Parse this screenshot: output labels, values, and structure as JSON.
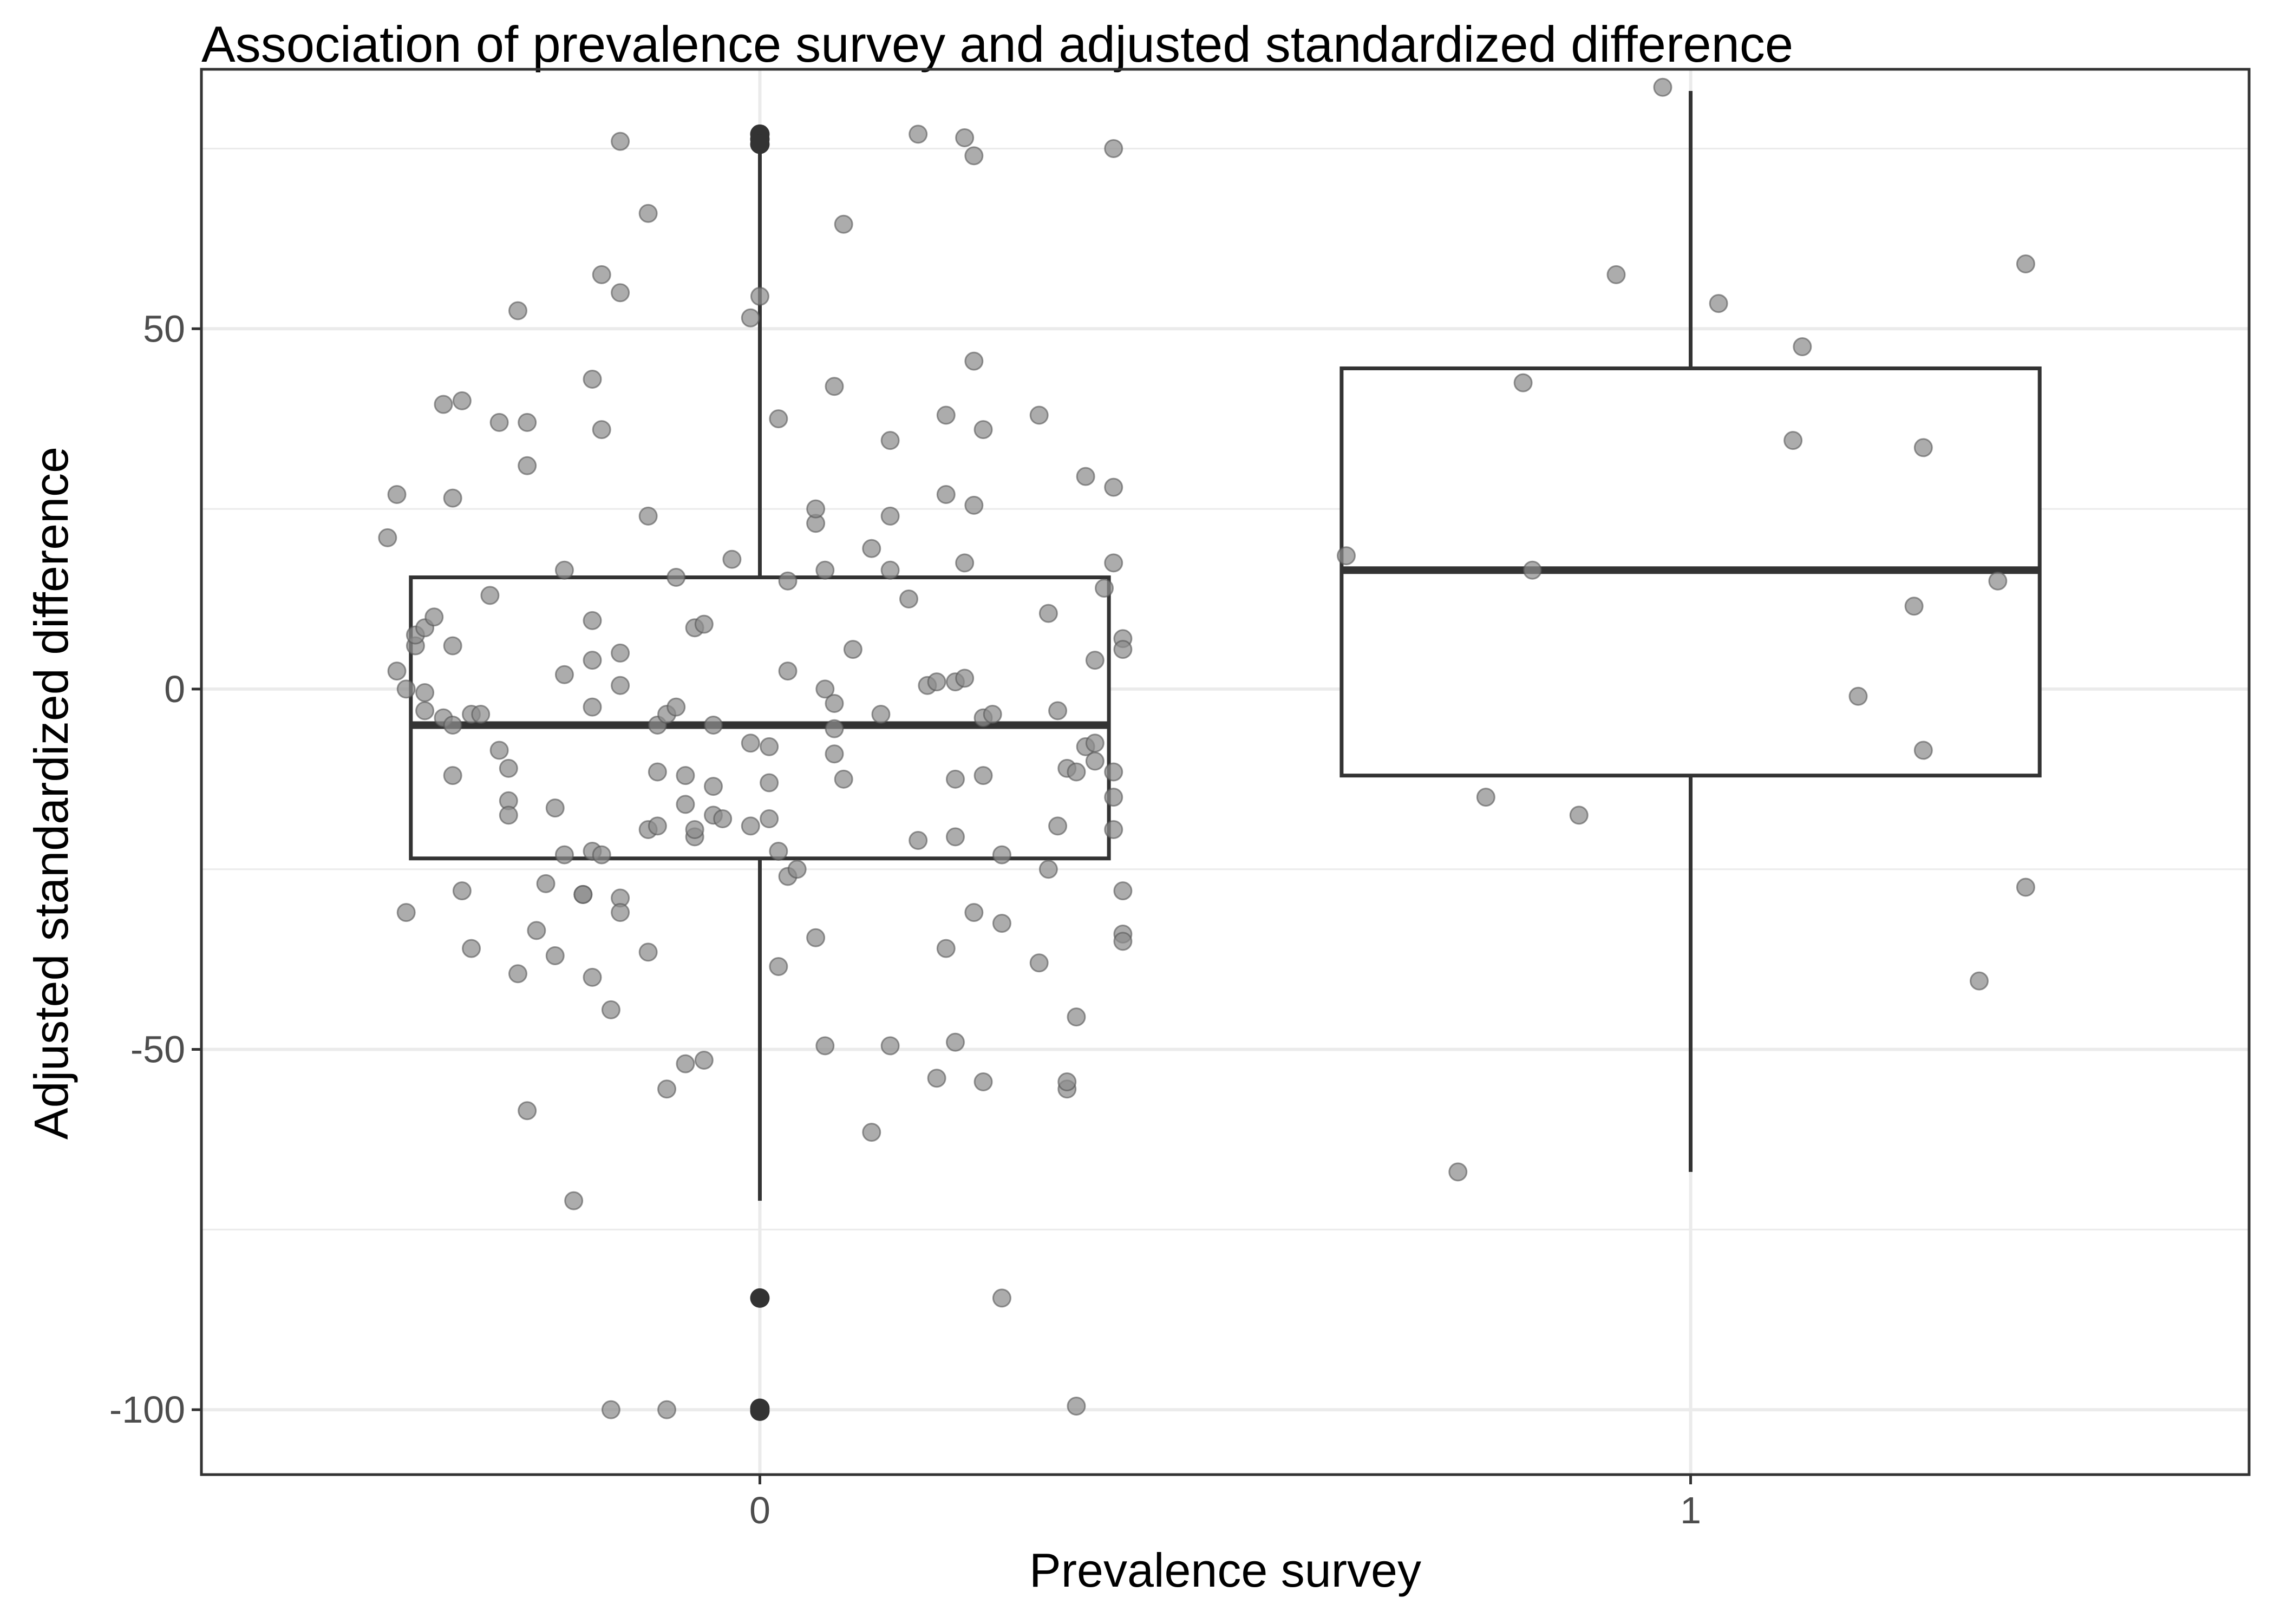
{
  "chart_data": {
    "type": "box",
    "title": "Association of prevalence survey and adjusted standardized difference",
    "xlabel": "Prevalence survey",
    "ylabel": "Adjusted standardized difference",
    "categories": [
      "0",
      "1"
    ],
    "ylim": [
      -109,
      86
    ],
    "yticks": [
      -100,
      -50,
      0,
      50
    ],
    "ytick_labels": [
      "-100",
      "-50",
      "0",
      "50"
    ],
    "grid": true,
    "colors": {
      "box": "#333333",
      "points": "#8c8c8c",
      "grid": "#ebebeb",
      "panel_border": "#333333"
    },
    "boxes": [
      {
        "category": "0",
        "q1": -23.5,
        "median": -5,
        "q3": 15.5,
        "whisker_low": -71,
        "whisker_high": 76
      },
      {
        "category": "1",
        "q1": -12,
        "median": 16.5,
        "q3": 44.5,
        "whisker_low": -67,
        "whisker_high": 83
      }
    ],
    "outliers": [
      {
        "category": "0",
        "y": 77
      },
      {
        "category": "0",
        "y": 76.3
      },
      {
        "category": "0",
        "y": 75.6
      },
      {
        "category": "0",
        "y": -84.5
      },
      {
        "category": "0",
        "y": -99.8
      },
      {
        "category": "0",
        "y": -100.2
      }
    ],
    "points": [
      {
        "x": -0.39,
        "y": 27
      },
      {
        "x": -0.4,
        "y": 21
      },
      {
        "x": -0.39,
        "y": 2.5
      },
      {
        "x": -0.38,
        "y": -31
      },
      {
        "x": -0.38,
        "y": 0
      },
      {
        "x": -0.37,
        "y": 6
      },
      {
        "x": -0.37,
        "y": 7.5
      },
      {
        "x": -0.36,
        "y": 8.5
      },
      {
        "x": -0.36,
        "y": -3
      },
      {
        "x": -0.36,
        "y": -0.5
      },
      {
        "x": -0.35,
        "y": 10
      },
      {
        "x": -0.34,
        "y": -4
      },
      {
        "x": -0.34,
        "y": 39.5
      },
      {
        "x": -0.33,
        "y": 26.5
      },
      {
        "x": -0.33,
        "y": -5
      },
      {
        "x": -0.33,
        "y": -12
      },
      {
        "x": -0.33,
        "y": 6
      },
      {
        "x": -0.32,
        "y": 40
      },
      {
        "x": -0.32,
        "y": -28
      },
      {
        "x": -0.31,
        "y": -3.5
      },
      {
        "x": -0.31,
        "y": -36
      },
      {
        "x": -0.3,
        "y": -3.5
      },
      {
        "x": -0.29,
        "y": 13
      },
      {
        "x": -0.28,
        "y": -8.5
      },
      {
        "x": -0.28,
        "y": 37
      },
      {
        "x": -0.27,
        "y": -15.5
      },
      {
        "x": -0.27,
        "y": -11
      },
      {
        "x": -0.27,
        "y": -17.5
      },
      {
        "x": -0.26,
        "y": 52.5
      },
      {
        "x": -0.26,
        "y": -39.5
      },
      {
        "x": -0.25,
        "y": -58.5
      },
      {
        "x": -0.25,
        "y": 31
      },
      {
        "x": -0.25,
        "y": 37
      },
      {
        "x": -0.24,
        "y": -33.5
      },
      {
        "x": -0.23,
        "y": -27
      },
      {
        "x": -0.22,
        "y": -16.5
      },
      {
        "x": -0.22,
        "y": -37
      },
      {
        "x": -0.21,
        "y": -23
      },
      {
        "x": -0.21,
        "y": 16.5
      },
      {
        "x": -0.21,
        "y": 2
      },
      {
        "x": -0.2,
        "y": -71
      },
      {
        "x": -0.19,
        "y": -28.5
      },
      {
        "x": -0.19,
        "y": -28.5
      },
      {
        "x": -0.18,
        "y": 4
      },
      {
        "x": -0.18,
        "y": -40
      },
      {
        "x": -0.18,
        "y": 43
      },
      {
        "x": -0.18,
        "y": 9.5
      },
      {
        "x": -0.18,
        "y": -2.5
      },
      {
        "x": -0.18,
        "y": -22.5
      },
      {
        "x": -0.17,
        "y": -23
      },
      {
        "x": -0.17,
        "y": 57.5
      },
      {
        "x": -0.17,
        "y": 36
      },
      {
        "x": -0.16,
        "y": -44.5
      },
      {
        "x": -0.16,
        "y": -100
      },
      {
        "x": -0.15,
        "y": 55
      },
      {
        "x": -0.15,
        "y": 5
      },
      {
        "x": -0.15,
        "y": 0.5
      },
      {
        "x": -0.15,
        "y": -29
      },
      {
        "x": -0.15,
        "y": -31
      },
      {
        "x": -0.15,
        "y": 76
      },
      {
        "x": -0.12,
        "y": 24
      },
      {
        "x": -0.12,
        "y": -36.5
      },
      {
        "x": -0.12,
        "y": -19.5
      },
      {
        "x": -0.12,
        "y": 66
      },
      {
        "x": -0.11,
        "y": -19
      },
      {
        "x": -0.11,
        "y": -11.5
      },
      {
        "x": -0.11,
        "y": -5
      },
      {
        "x": -0.1,
        "y": -55.5
      },
      {
        "x": -0.1,
        "y": -3.5
      },
      {
        "x": -0.1,
        "y": -100
      },
      {
        "x": -0.09,
        "y": 15.5
      },
      {
        "x": -0.09,
        "y": -2.5
      },
      {
        "x": -0.08,
        "y": -52
      },
      {
        "x": -0.08,
        "y": -12
      },
      {
        "x": -0.08,
        "y": -16
      },
      {
        "x": -0.07,
        "y": -20.5
      },
      {
        "x": -0.07,
        "y": -19.5
      },
      {
        "x": -0.07,
        "y": 8.5
      },
      {
        "x": -0.06,
        "y": 9
      },
      {
        "x": -0.06,
        "y": -51.5
      },
      {
        "x": -0.05,
        "y": -5
      },
      {
        "x": -0.05,
        "y": -13.5
      },
      {
        "x": -0.05,
        "y": -17.5
      },
      {
        "x": -0.04,
        "y": -18
      },
      {
        "x": -0.03,
        "y": 18
      },
      {
        "x": -0.01,
        "y": 51.5
      },
      {
        "x": -0.01,
        "y": -7.5
      },
      {
        "x": -0.01,
        "y": -19
      },
      {
        "x": 0.0,
        "y": 54.5
      },
      {
        "x": 0.01,
        "y": -8
      },
      {
        "x": 0.01,
        "y": -13
      },
      {
        "x": 0.01,
        "y": -18
      },
      {
        "x": 0.02,
        "y": 37.5
      },
      {
        "x": 0.02,
        "y": -22.5
      },
      {
        "x": 0.02,
        "y": -38.5
      },
      {
        "x": 0.03,
        "y": 15
      },
      {
        "x": 0.03,
        "y": 2.5
      },
      {
        "x": 0.03,
        "y": -26
      },
      {
        "x": 0.04,
        "y": -25
      },
      {
        "x": 0.06,
        "y": 23
      },
      {
        "x": 0.06,
        "y": 25
      },
      {
        "x": 0.06,
        "y": -34.5
      },
      {
        "x": 0.07,
        "y": 16.5
      },
      {
        "x": 0.07,
        "y": 0
      },
      {
        "x": 0.07,
        "y": -49.5
      },
      {
        "x": 0.08,
        "y": -2
      },
      {
        "x": 0.08,
        "y": -5.5
      },
      {
        "x": 0.08,
        "y": -9
      },
      {
        "x": 0.08,
        "y": 42
      },
      {
        "x": 0.09,
        "y": -12.5
      },
      {
        "x": 0.09,
        "y": 64.5
      },
      {
        "x": 0.1,
        "y": 5.5
      },
      {
        "x": 0.12,
        "y": 19.5
      },
      {
        "x": 0.12,
        "y": -61.5
      },
      {
        "x": 0.13,
        "y": -3.5
      },
      {
        "x": 0.14,
        "y": 34.5
      },
      {
        "x": 0.14,
        "y": 16.5
      },
      {
        "x": 0.14,
        "y": -49.5
      },
      {
        "x": 0.14,
        "y": 24
      },
      {
        "x": 0.16,
        "y": 12.5
      },
      {
        "x": 0.17,
        "y": 77
      },
      {
        "x": 0.17,
        "y": -21
      },
      {
        "x": 0.18,
        "y": 0.5
      },
      {
        "x": 0.19,
        "y": 1
      },
      {
        "x": 0.19,
        "y": -54
      },
      {
        "x": 0.2,
        "y": 27
      },
      {
        "x": 0.2,
        "y": 38
      },
      {
        "x": 0.2,
        "y": -36
      },
      {
        "x": 0.21,
        "y": -12.5
      },
      {
        "x": 0.21,
        "y": -20.5
      },
      {
        "x": 0.21,
        "y": -49
      },
      {
        "x": 0.21,
        "y": 1
      },
      {
        "x": 0.22,
        "y": 1.5
      },
      {
        "x": 0.22,
        "y": 17.5
      },
      {
        "x": 0.22,
        "y": 76.5
      },
      {
        "x": 0.23,
        "y": -31
      },
      {
        "x": 0.23,
        "y": 74
      },
      {
        "x": 0.23,
        "y": 25.5
      },
      {
        "x": 0.23,
        "y": 45.5
      },
      {
        "x": 0.24,
        "y": -4
      },
      {
        "x": 0.24,
        "y": -54.5
      },
      {
        "x": 0.24,
        "y": 36
      },
      {
        "x": 0.24,
        "y": -12
      },
      {
        "x": 0.25,
        "y": -3.5
      },
      {
        "x": 0.26,
        "y": -32.5
      },
      {
        "x": 0.26,
        "y": -23
      },
      {
        "x": 0.26,
        "y": -84.5
      },
      {
        "x": 0.3,
        "y": -38
      },
      {
        "x": 0.3,
        "y": 38
      },
      {
        "x": 0.31,
        "y": 10.5
      },
      {
        "x": 0.31,
        "y": -25
      },
      {
        "x": 0.32,
        "y": -19
      },
      {
        "x": 0.32,
        "y": -3
      },
      {
        "x": 0.33,
        "y": -55.5
      },
      {
        "x": 0.33,
        "y": -54.5
      },
      {
        "x": 0.33,
        "y": -11
      },
      {
        "x": 0.34,
        "y": -11.5
      },
      {
        "x": 0.34,
        "y": -99.5
      },
      {
        "x": 0.34,
        "y": -45.5
      },
      {
        "x": 0.35,
        "y": -8
      },
      {
        "x": 0.35,
        "y": 29.5
      },
      {
        "x": 0.36,
        "y": -7.5
      },
      {
        "x": 0.36,
        "y": -10
      },
      {
        "x": 0.36,
        "y": 4
      },
      {
        "x": 0.37,
        "y": 14
      },
      {
        "x": 0.38,
        "y": 75
      },
      {
        "x": 0.38,
        "y": 17.5
      },
      {
        "x": 0.38,
        "y": 28
      },
      {
        "x": 0.38,
        "y": -15
      },
      {
        "x": 0.38,
        "y": -11.5
      },
      {
        "x": 0.38,
        "y": -19.5
      },
      {
        "x": 0.39,
        "y": 7
      },
      {
        "x": 0.39,
        "y": -34
      },
      {
        "x": 0.39,
        "y": -35
      },
      {
        "x": 0.39,
        "y": -28
      },
      {
        "x": 0.39,
        "y": 5.5
      },
      {
        "x": 0.63,
        "y": 18.5
      },
      {
        "x": 0.75,
        "y": -67
      },
      {
        "x": 0.78,
        "y": -15
      },
      {
        "x": 0.82,
        "y": 42.5
      },
      {
        "x": 0.83,
        "y": 16.5
      },
      {
        "x": 0.88,
        "y": -17.5
      },
      {
        "x": 0.92,
        "y": 57.5
      },
      {
        "x": 0.97,
        "y": 83.5
      },
      {
        "x": 1.03,
        "y": 53.5
      },
      {
        "x": 1.11,
        "y": 34.5
      },
      {
        "x": 1.12,
        "y": 47.5
      },
      {
        "x": 1.18,
        "y": -1
      },
      {
        "x": 1.24,
        "y": 11.5
      },
      {
        "x": 1.25,
        "y": -8.5
      },
      {
        "x": 1.25,
        "y": 33.5
      },
      {
        "x": 1.31,
        "y": -40.5
      },
      {
        "x": 1.33,
        "y": 15
      },
      {
        "x": 1.36,
        "y": 59
      },
      {
        "x": 1.36,
        "y": -27.5
      }
    ]
  }
}
